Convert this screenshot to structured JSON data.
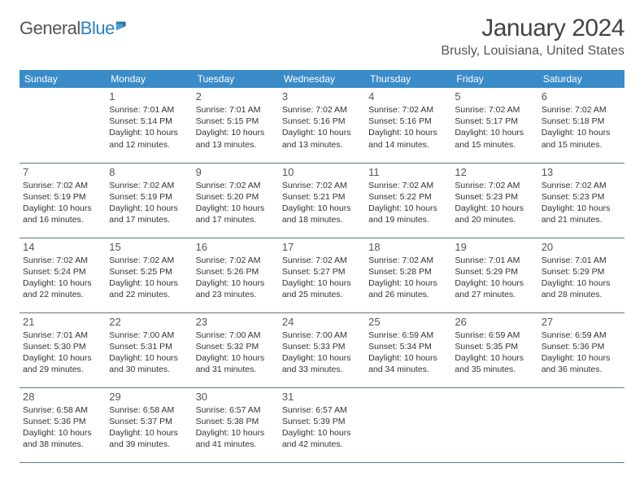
{
  "logo": {
    "text1": "General",
    "text2": "Blue"
  },
  "title": "January 2024",
  "location": "Brusly, Louisiana, United States",
  "columns": [
    "Sunday",
    "Monday",
    "Tuesday",
    "Wednesday",
    "Thursday",
    "Friday",
    "Saturday"
  ],
  "header_bg": "#3a8cc9",
  "header_fg": "#ffffff",
  "cell_border": "#5a7a95",
  "daynum_fontsize": 13,
  "detail_fontsize": 10.5,
  "weeks": [
    [
      null,
      {
        "d": "1",
        "sr": "7:01 AM",
        "ss": "5:14 PM",
        "dl": "10 hours and 12 minutes."
      },
      {
        "d": "2",
        "sr": "7:01 AM",
        "ss": "5:15 PM",
        "dl": "10 hours and 13 minutes."
      },
      {
        "d": "3",
        "sr": "7:02 AM",
        "ss": "5:16 PM",
        "dl": "10 hours and 13 minutes."
      },
      {
        "d": "4",
        "sr": "7:02 AM",
        "ss": "5:16 PM",
        "dl": "10 hours and 14 minutes."
      },
      {
        "d": "5",
        "sr": "7:02 AM",
        "ss": "5:17 PM",
        "dl": "10 hours and 15 minutes."
      },
      {
        "d": "6",
        "sr": "7:02 AM",
        "ss": "5:18 PM",
        "dl": "10 hours and 15 minutes."
      }
    ],
    [
      {
        "d": "7",
        "sr": "7:02 AM",
        "ss": "5:19 PM",
        "dl": "10 hours and 16 minutes."
      },
      {
        "d": "8",
        "sr": "7:02 AM",
        "ss": "5:19 PM",
        "dl": "10 hours and 17 minutes."
      },
      {
        "d": "9",
        "sr": "7:02 AM",
        "ss": "5:20 PM",
        "dl": "10 hours and 17 minutes."
      },
      {
        "d": "10",
        "sr": "7:02 AM",
        "ss": "5:21 PM",
        "dl": "10 hours and 18 minutes."
      },
      {
        "d": "11",
        "sr": "7:02 AM",
        "ss": "5:22 PM",
        "dl": "10 hours and 19 minutes."
      },
      {
        "d": "12",
        "sr": "7:02 AM",
        "ss": "5:23 PM",
        "dl": "10 hours and 20 minutes."
      },
      {
        "d": "13",
        "sr": "7:02 AM",
        "ss": "5:23 PM",
        "dl": "10 hours and 21 minutes."
      }
    ],
    [
      {
        "d": "14",
        "sr": "7:02 AM",
        "ss": "5:24 PM",
        "dl": "10 hours and 22 minutes."
      },
      {
        "d": "15",
        "sr": "7:02 AM",
        "ss": "5:25 PM",
        "dl": "10 hours and 22 minutes."
      },
      {
        "d": "16",
        "sr": "7:02 AM",
        "ss": "5:26 PM",
        "dl": "10 hours and 23 minutes."
      },
      {
        "d": "17",
        "sr": "7:02 AM",
        "ss": "5:27 PM",
        "dl": "10 hours and 25 minutes."
      },
      {
        "d": "18",
        "sr": "7:02 AM",
        "ss": "5:28 PM",
        "dl": "10 hours and 26 minutes."
      },
      {
        "d": "19",
        "sr": "7:01 AM",
        "ss": "5:29 PM",
        "dl": "10 hours and 27 minutes."
      },
      {
        "d": "20",
        "sr": "7:01 AM",
        "ss": "5:29 PM",
        "dl": "10 hours and 28 minutes."
      }
    ],
    [
      {
        "d": "21",
        "sr": "7:01 AM",
        "ss": "5:30 PM",
        "dl": "10 hours and 29 minutes."
      },
      {
        "d": "22",
        "sr": "7:00 AM",
        "ss": "5:31 PM",
        "dl": "10 hours and 30 minutes."
      },
      {
        "d": "23",
        "sr": "7:00 AM",
        "ss": "5:32 PM",
        "dl": "10 hours and 31 minutes."
      },
      {
        "d": "24",
        "sr": "7:00 AM",
        "ss": "5:33 PM",
        "dl": "10 hours and 33 minutes."
      },
      {
        "d": "25",
        "sr": "6:59 AM",
        "ss": "5:34 PM",
        "dl": "10 hours and 34 minutes."
      },
      {
        "d": "26",
        "sr": "6:59 AM",
        "ss": "5:35 PM",
        "dl": "10 hours and 35 minutes."
      },
      {
        "d": "27",
        "sr": "6:59 AM",
        "ss": "5:36 PM",
        "dl": "10 hours and 36 minutes."
      }
    ],
    [
      {
        "d": "28",
        "sr": "6:58 AM",
        "ss": "5:36 PM",
        "dl": "10 hours and 38 minutes."
      },
      {
        "d": "29",
        "sr": "6:58 AM",
        "ss": "5:37 PM",
        "dl": "10 hours and 39 minutes."
      },
      {
        "d": "30",
        "sr": "6:57 AM",
        "ss": "5:38 PM",
        "dl": "10 hours and 41 minutes."
      },
      {
        "d": "31",
        "sr": "6:57 AM",
        "ss": "5:39 PM",
        "dl": "10 hours and 42 minutes."
      },
      null,
      null,
      null
    ]
  ],
  "labels": {
    "sunrise": "Sunrise:",
    "sunset": "Sunset:",
    "daylight": "Daylight:"
  }
}
